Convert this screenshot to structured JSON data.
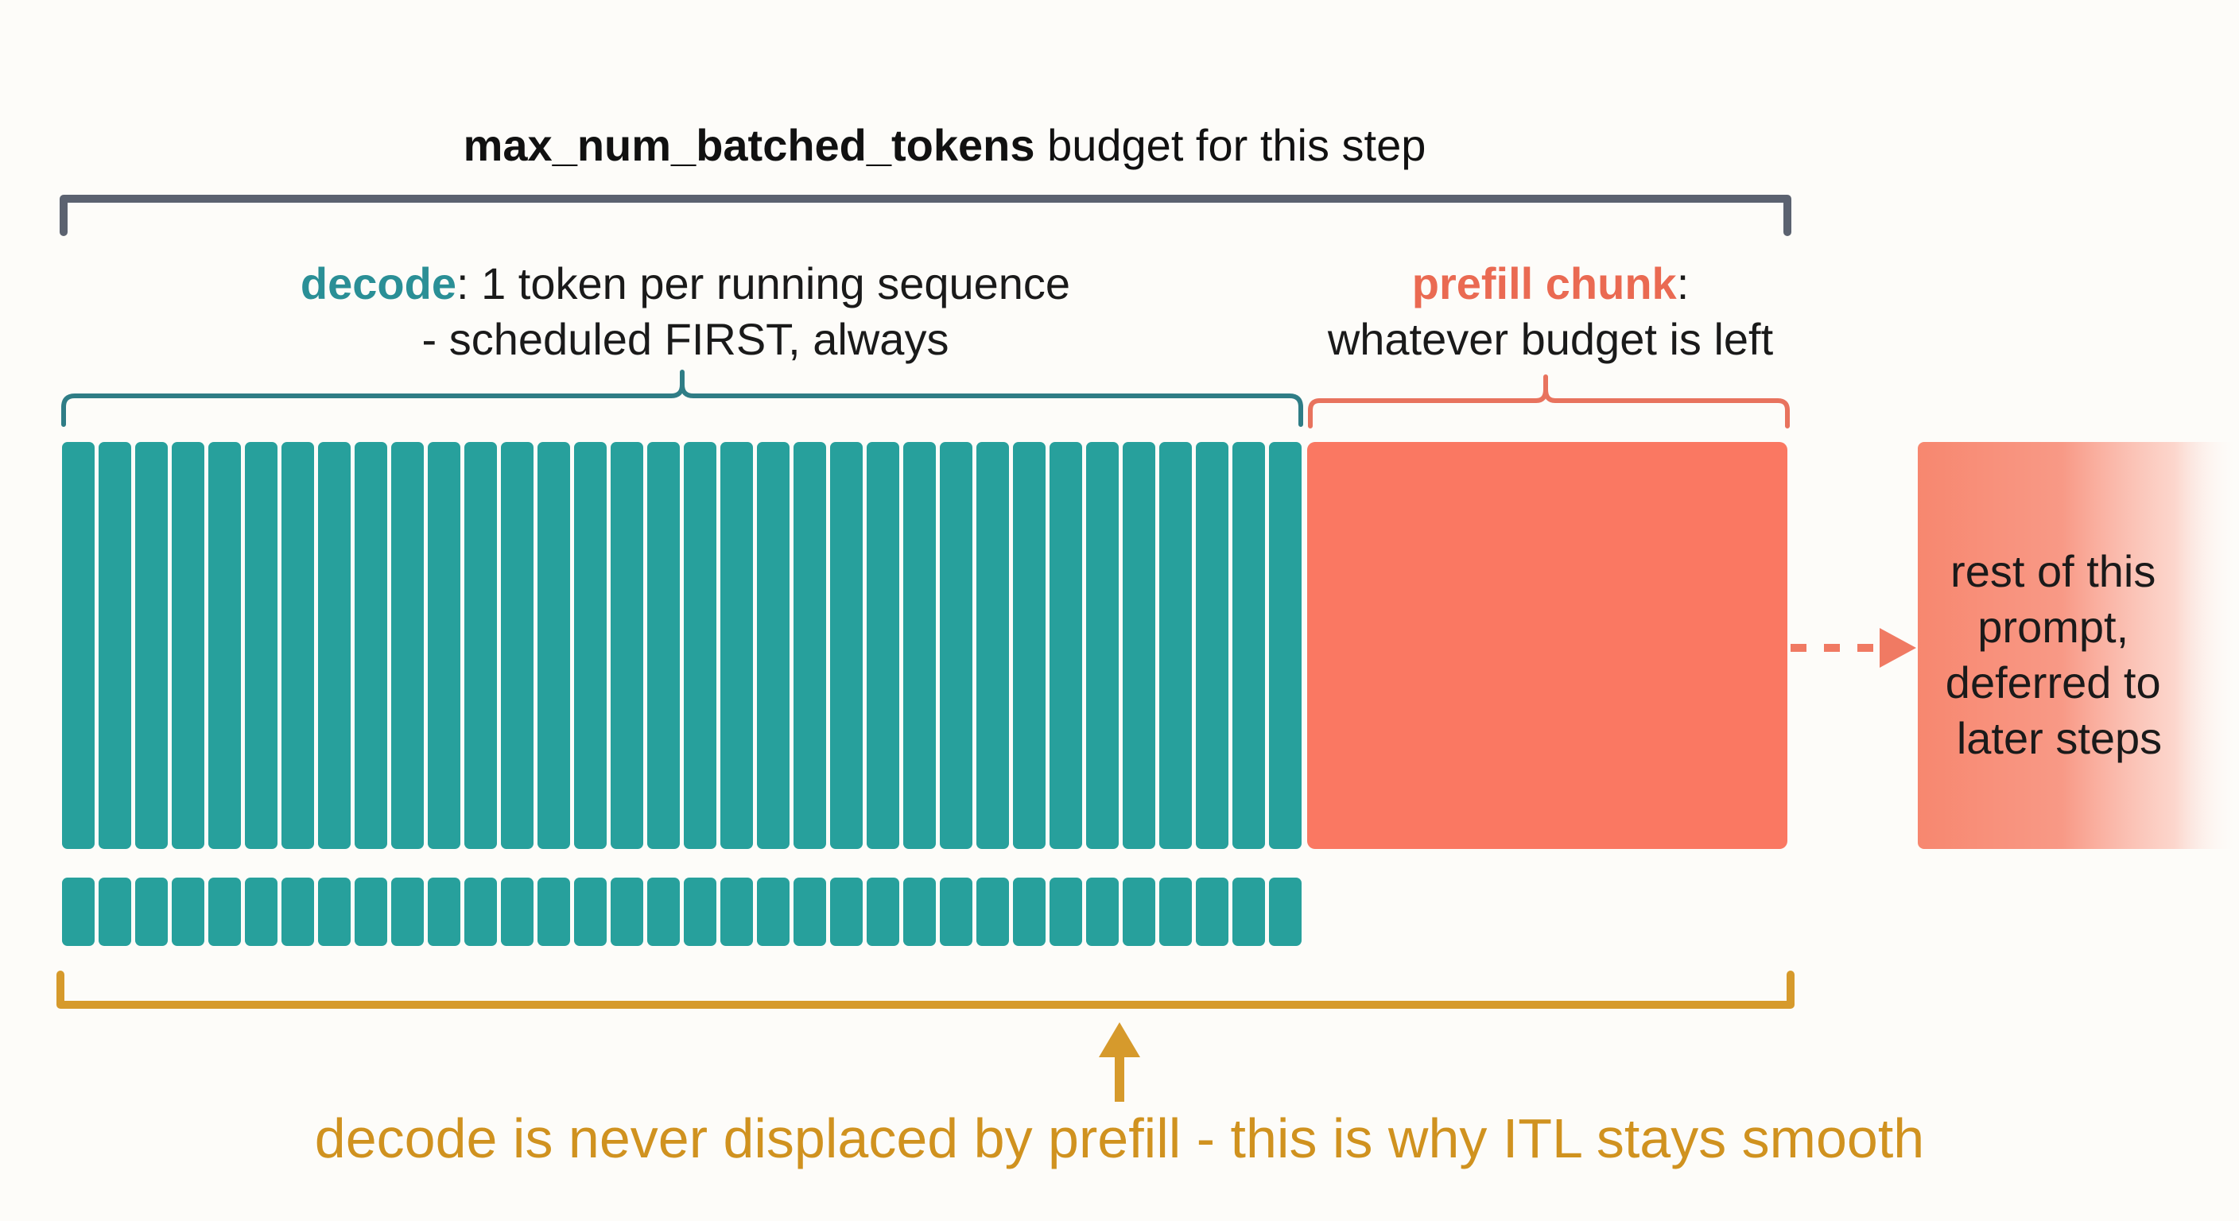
{
  "budget": {
    "label_bold": "max_num_batched_tokens",
    "label_rest": " budget for this step"
  },
  "decode": {
    "term": "decode",
    "line1_rest": ": 1 token per running sequence",
    "line2": "- scheduled FIRST, always",
    "token_count": 34,
    "color": "#27a09c"
  },
  "prefill": {
    "term": "prefill chunk",
    "line1_rest": ":",
    "line2": "whatever budget is left",
    "color": "#fa7862",
    "term_color": "#ea6a52"
  },
  "deferred": {
    "lines": [
      "rest of this",
      "prompt,",
      "deferred to",
      "later steps"
    ]
  },
  "note": {
    "text": "decode is never displaced by prefill - this is why ITL stays smooth",
    "color": "#d0921f"
  },
  "colors": {
    "bracket_budget": "#5b6270",
    "bracket_decode": "#2f7d86",
    "bracket_prefill": "#e8735e",
    "bracket_note": "#d69a2c",
    "text": "#1a1a1a"
  }
}
